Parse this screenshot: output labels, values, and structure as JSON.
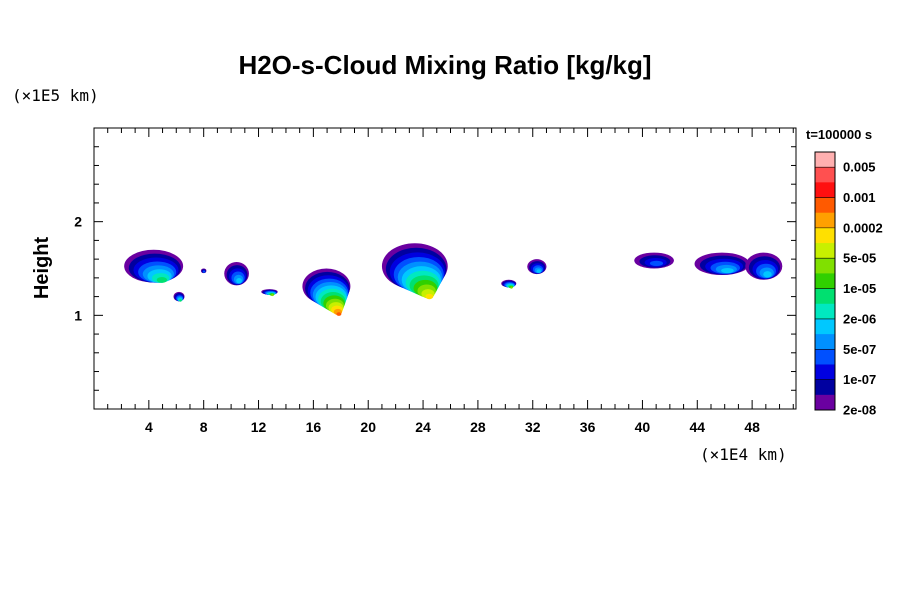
{
  "chart_data": {
    "type": "heatmap",
    "title": "H2O-s-Cloud Mixing Ratio [kg/kg]",
    "xlabel": "",
    "ylabel": "Height",
    "x_unit": "(×1E4 km)",
    "y_unit": "(×1E5 km)",
    "time_label": "t=100000 s",
    "xlim": [
      0,
      51.2
    ],
    "ylim": [
      0,
      3
    ],
    "x_ticks": [
      4,
      8,
      12,
      16,
      20,
      24,
      28,
      32,
      36,
      40,
      44,
      48
    ],
    "x_tick_labels": [
      "4",
      "8",
      "12",
      "16",
      "20",
      "24",
      "28",
      "32",
      "36",
      "40",
      "44",
      "48"
    ],
    "y_ticks": [
      1,
      2
    ],
    "y_tick_labels": [
      "1",
      "2"
    ],
    "colorbar": {
      "levels": [
        "0.005",
        "0.001",
        "0.0002",
        "5e-05",
        "1e-05",
        "2e-06",
        "5e-07",
        "1e-07",
        "2e-08"
      ],
      "colors": [
        "#ffb0b0",
        "#ff5050",
        "#ff1010",
        "#ff5a00",
        "#ffa000",
        "#ffe000",
        "#c8f000",
        "#80e000",
        "#30d000",
        "#00e070",
        "#00e8c0",
        "#00c8ff",
        "#0090ff",
        "#0050ff",
        "#0000e0",
        "#0000a0",
        "#6a00a0"
      ]
    },
    "clouds": [
      {
        "x": [
          2.2,
          6.5
        ],
        "y": [
          1.35,
          1.7
        ],
        "peak_level": "2e-06"
      },
      {
        "x": [
          5.8,
          6.6
        ],
        "y": [
          1.15,
          1.25
        ],
        "peak_level": "2e-06"
      },
      {
        "x": [
          7.8,
          8.2
        ],
        "y": [
          1.45,
          1.5
        ],
        "peak_level": "1e-07"
      },
      {
        "x": [
          9.5,
          11.3
        ],
        "y": [
          1.32,
          1.57
        ],
        "peak_level": "5e-07"
      },
      {
        "x": [
          12.2,
          13.4
        ],
        "y": [
          1.22,
          1.28
        ],
        "peak_level": "1e-05"
      },
      {
        "x": [
          15.2,
          18.7
        ],
        "y": [
          1.12,
          1.5
        ],
        "peak_level": "0.0002"
      },
      {
        "x": [
          21.0,
          25.8
        ],
        "y": [
          1.28,
          1.77
        ],
        "peak_level": "5e-05"
      },
      {
        "x": [
          29.7,
          30.8
        ],
        "y": [
          1.3,
          1.38
        ],
        "peak_level": "1e-05"
      },
      {
        "x": [
          31.6,
          33.0
        ],
        "y": [
          1.44,
          1.6
        ],
        "peak_level": "5e-07"
      },
      {
        "x": [
          39.4,
          42.3
        ],
        "y": [
          1.5,
          1.67
        ],
        "peak_level": "1e-07"
      },
      {
        "x": [
          43.8,
          47.8
        ],
        "y": [
          1.43,
          1.67
        ],
        "peak_level": "5e-07"
      },
      {
        "x": [
          47.5,
          50.2
        ],
        "y": [
          1.38,
          1.67
        ],
        "peak_level": "5e-07"
      }
    ]
  }
}
